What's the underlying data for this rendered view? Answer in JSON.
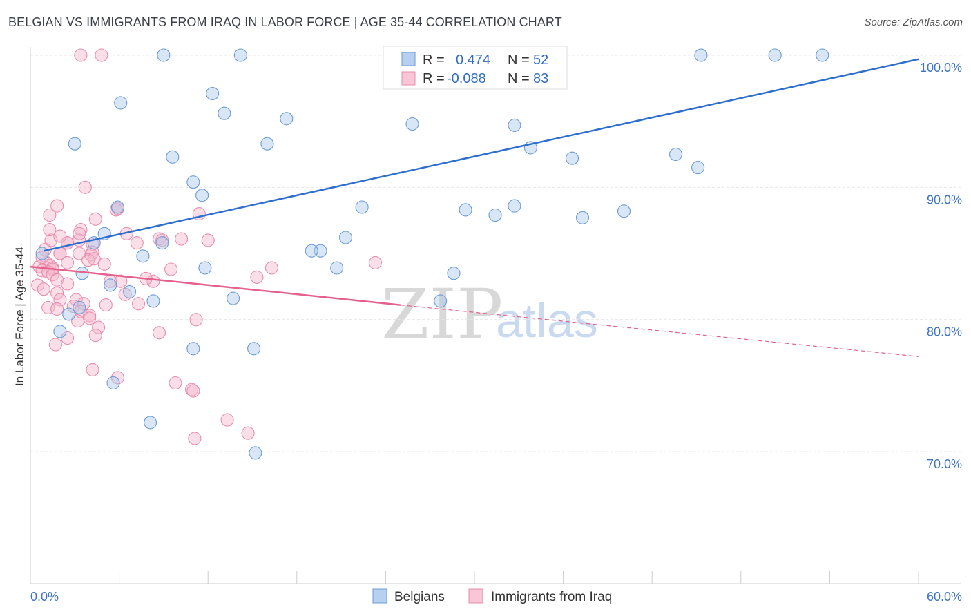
{
  "title": "BELGIAN VS IMMIGRANTS FROM IRAQ IN LABOR FORCE | AGE 35-44 CORRELATION CHART",
  "source": "Source: ZipAtlas.com",
  "watermark": {
    "zip": "ZIP",
    "atlas": "atlas"
  },
  "legend": {
    "r_label": "R =",
    "n_label": "N =",
    "series": [
      {
        "r": "0.474",
        "n": "52"
      },
      {
        "r": "-0.088",
        "n": "83"
      }
    ]
  },
  "bottom_legend": [
    "Belgians",
    "Immigrants from Iraq"
  ],
  "chart_data": {
    "type": "scatter",
    "title": "BELGIAN VS IMMIGRANTS FROM IRAQ IN LABOR FORCE | AGE 35-44 CORRELATION CHART",
    "xlabel": "",
    "ylabel": "In Labor Force | Age 35-44",
    "xlim": [
      0,
      60
    ],
    "ylim": [
      60,
      101.5
    ],
    "x_tick_labels": [
      "0.0%",
      "60.0%"
    ],
    "y_ticks": [
      70,
      80,
      90,
      100
    ],
    "y_tick_labels": [
      "70.0%",
      "80.0%",
      "90.0%",
      "100.0%"
    ],
    "grid": true,
    "legend_position": "top-center",
    "series": [
      {
        "name": "Belgians",
        "color": "#a9c7ec",
        "edge_color": "#6b9bd8",
        "line_color": "#2e6fce",
        "trend": {
          "x0": 0.9,
          "y0": 85.2,
          "x1": 60,
          "y1": 99.7
        },
        "x": [
          9,
          14.2,
          45.3,
          50.3,
          53.5,
          12.3,
          6.1,
          13.1,
          17.3,
          25.8,
          32.7,
          3.0,
          16.0,
          33.8,
          43.6,
          9.6,
          36.6,
          45.1,
          11.0,
          11.6,
          32.7,
          22.4,
          5.9,
          29.4,
          40.1,
          31.4,
          37.3,
          5.0,
          21.3,
          8.9,
          4.3,
          19.6,
          19.0,
          7.6,
          11.8,
          20.7,
          28.6,
          3.5,
          5.4,
          6.7,
          27.7,
          13.7,
          3.3,
          2.6,
          2.0,
          8.3,
          11.0,
          15.1,
          5.6,
          8.1,
          15.2,
          0.8
        ],
        "y": [
          100,
          100,
          100,
          100,
          100,
          97.1,
          96.4,
          95.6,
          95.2,
          94.8,
          94.7,
          93.3,
          93.3,
          93.0,
          92.5,
          92.3,
          92.2,
          91.5,
          90.4,
          89.4,
          88.6,
          88.5,
          88.5,
          88.3,
          88.2,
          87.9,
          87.7,
          86.5,
          86.2,
          85.8,
          85.8,
          85.2,
          85.2,
          84.8,
          83.9,
          83.9,
          83.5,
          83.5,
          82.6,
          82.1,
          81.4,
          81.6,
          80.9,
          80.4,
          79.1,
          81.4,
          77.8,
          77.8,
          75.2,
          72.2,
          69.9,
          85.0
        ]
      },
      {
        "name": "Immigrants from Iraq",
        "color": "#f5b9cd",
        "edge_color": "#e98cab",
        "line_color": "#e4608d",
        "trend": {
          "x0": 0,
          "y0": 84.0,
          "x1": 25,
          "y1": 81.1
        },
        "trend_dashed": {
          "x0": 25,
          "y0": 81.1,
          "x1": 60,
          "y1": 77.2
        },
        "x": [
          3.4,
          4.8,
          3.7,
          5.9,
          11.4,
          1.3,
          1.8,
          5.8,
          4.4,
          3.4,
          6.5,
          8.7,
          10.2,
          12.0,
          3.3,
          7.2,
          2.5,
          2.5,
          4.2,
          8.9,
          4.2,
          4.1,
          1.0,
          2.0,
          3.9,
          2.0,
          1.1,
          0.6,
          0.8,
          1.3,
          2.5,
          1.5,
          1.5,
          0.8,
          1.2,
          1.5,
          1.8,
          2.5,
          0.5,
          0.9,
          1.8,
          2.0,
          3.1,
          2.9,
          3.6,
          3.4,
          3.2,
          1.4,
          1.3,
          2.0,
          1.2,
          1.8,
          7.3,
          4.0,
          4.0,
          4.6,
          4.4,
          2.5,
          1.7,
          4.2,
          5.9,
          9.8,
          10.9,
          11.0,
          14.7,
          11.1,
          13.3,
          16.3,
          15.3,
          23.3,
          3.3,
          4.3,
          3.3,
          5.0,
          8.3,
          7.8,
          6.4,
          9.5,
          6.1,
          5.4,
          5.1,
          8.7,
          11.2
        ],
        "y": [
          100,
          100,
          90.0,
          88.4,
          88.0,
          87.9,
          88.6,
          88.3,
          87.6,
          86.8,
          86.5,
          86.1,
          86.1,
          86.0,
          86.0,
          85.8,
          85.8,
          85.8,
          85.7,
          86.0,
          85.1,
          84.9,
          85.3,
          85.0,
          84.5,
          85.0,
          84.3,
          84.0,
          84.7,
          84.1,
          84.3,
          83.9,
          83.8,
          83.7,
          83.6,
          83.4,
          83.0,
          82.7,
          82.6,
          82.3,
          82.0,
          81.5,
          81.5,
          81.0,
          81.2,
          80.6,
          79.9,
          86.0,
          86.8,
          86.3,
          80.9,
          80.8,
          81.2,
          80.3,
          80.1,
          79.4,
          78.8,
          78.6,
          78.1,
          76.2,
          75.6,
          75.2,
          74.7,
          74.6,
          71.4,
          71.0,
          72.4,
          83.9,
          83.2,
          84.3,
          85.0,
          84.6,
          86.5,
          84.2,
          82.9,
          83.1,
          81.9,
          83.8,
          82.9,
          82.9,
          81.1,
          79.0,
          80.0
        ]
      }
    ]
  }
}
